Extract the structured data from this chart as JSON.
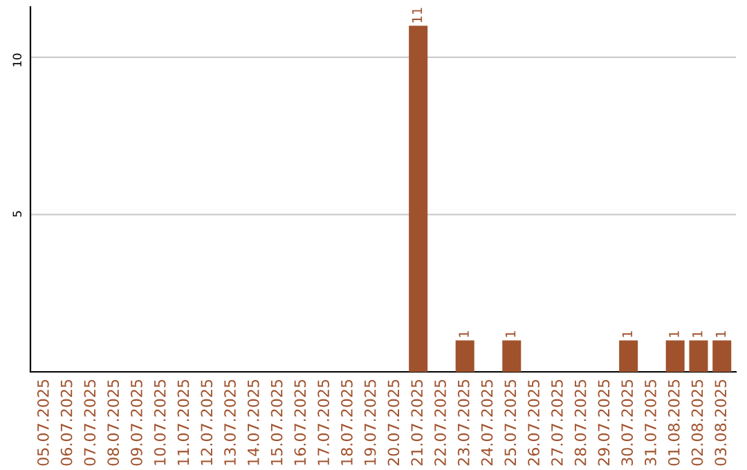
{
  "chart_data": {
    "type": "bar",
    "categories": [
      "05.07.2025",
      "06.07.2025",
      "07.07.2025",
      "08.07.2025",
      "09.07.2025",
      "10.07.2025",
      "11.07.2025",
      "12.07.2025",
      "13.07.2025",
      "14.07.2025",
      "15.07.2025",
      "16.07.2025",
      "17.07.2025",
      "18.07.2025",
      "19.07.2025",
      "20.07.2025",
      "21.07.2025",
      "22.07.2025",
      "23.07.2025",
      "24.07.2025",
      "25.07.2025",
      "26.07.2025",
      "27.07.2025",
      "28.07.2025",
      "29.07.2025",
      "30.07.2025",
      "31.07.2025",
      "01.08.2025",
      "02.08.2025",
      "03.08.2025"
    ],
    "values": [
      0,
      0,
      0,
      0,
      0,
      0,
      0,
      0,
      0,
      0,
      0,
      0,
      0,
      0,
      0,
      0,
      11,
      0,
      1,
      0,
      1,
      0,
      0,
      0,
      0,
      1,
      0,
      1,
      1,
      1
    ],
    "value_labels": [
      null,
      null,
      null,
      null,
      null,
      null,
      null,
      null,
      null,
      null,
      null,
      null,
      null,
      null,
      null,
      null,
      "11",
      null,
      "1",
      null,
      "1",
      null,
      null,
      null,
      null,
      "1",
      null,
      "1",
      "1",
      "1"
    ],
    "color": "#a0522d",
    "ylim": [
      0,
      11.6
    ],
    "yticks": [
      5,
      10
    ],
    "grid": "y"
  }
}
